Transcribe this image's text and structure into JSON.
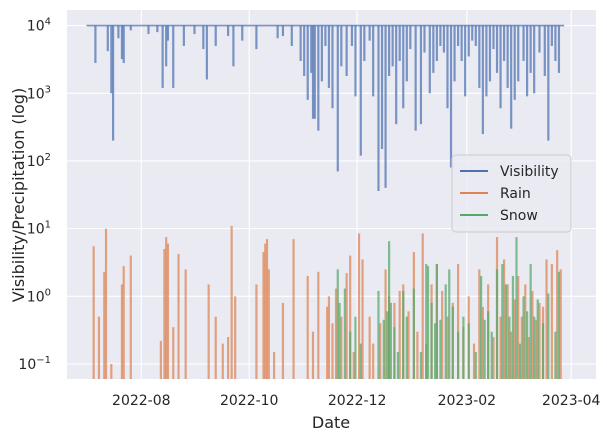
{
  "chart_data": {
    "type": "line",
    "title": "",
    "xlabel": "Date",
    "ylabel": "Visibility/Precipitation (log)",
    "yscale": "log",
    "ylim": [
      0.06,
      17000
    ],
    "xlim": [
      "2022-06-20",
      "2023-04-15"
    ],
    "grid": true,
    "legend_position": "center-right",
    "x_ticks": [
      {
        "date": "2022-08-01",
        "label": "2022-08"
      },
      {
        "date": "2022-10-01",
        "label": "2022-10"
      },
      {
        "date": "2022-12-01",
        "label": "2022-12"
      },
      {
        "date": "2023-02-01",
        "label": "2023-02"
      },
      {
        "date": "2023-04-01",
        "label": "2023-04"
      }
    ],
    "y_ticks": [
      {
        "value": 0.1,
        "base": "10",
        "exp": "−1"
      },
      {
        "value": 1,
        "base": "10",
        "exp": "0"
      },
      {
        "value": 10,
        "base": "10",
        "exp": "1"
      },
      {
        "value": 100,
        "base": "10",
        "exp": "2"
      },
      {
        "value": 1000,
        "base": "10",
        "exp": "3"
      },
      {
        "value": 10000,
        "base": "10",
        "exp": "4"
      }
    ],
    "series": [
      {
        "name": "Visibility",
        "color": "#4c72b0",
        "baseline": 10000,
        "span": [
          "2022-07-01",
          "2023-03-28"
        ],
        "dips": [
          [
            "2022-07-06",
            2800
          ],
          [
            "2022-07-13",
            4200
          ],
          [
            "2022-07-15",
            1000
          ],
          [
            "2022-07-16",
            200
          ],
          [
            "2022-07-19",
            6500
          ],
          [
            "2022-07-21",
            3200
          ],
          [
            "2022-07-22",
            2800
          ],
          [
            "2022-07-26",
            8500
          ],
          [
            "2022-08-05",
            7500
          ],
          [
            "2022-08-10",
            8000
          ],
          [
            "2022-08-13",
            1200
          ],
          [
            "2022-08-15",
            2500
          ],
          [
            "2022-08-16",
            6000
          ],
          [
            "2022-08-19",
            1200
          ],
          [
            "2022-08-25",
            5000
          ],
          [
            "2022-08-31",
            7500
          ],
          [
            "2022-09-05",
            4500
          ],
          [
            "2022-09-07",
            1600
          ],
          [
            "2022-09-12",
            5000
          ],
          [
            "2022-09-19",
            7000
          ],
          [
            "2022-09-22",
            2500
          ],
          [
            "2022-09-27",
            6000
          ],
          [
            "2022-10-05",
            4500
          ],
          [
            "2022-10-17",
            6500
          ],
          [
            "2022-10-20",
            7000
          ],
          [
            "2022-10-25",
            5000
          ],
          [
            "2022-10-30",
            3000
          ],
          [
            "2022-11-01",
            1800
          ],
          [
            "2022-11-03",
            800
          ],
          [
            "2022-11-05",
            2000
          ],
          [
            "2022-11-06",
            420
          ],
          [
            "2022-11-07",
            420
          ],
          [
            "2022-11-09",
            280
          ],
          [
            "2022-11-11",
            1500
          ],
          [
            "2022-11-13",
            5000
          ],
          [
            "2022-11-15",
            1200
          ],
          [
            "2022-11-17",
            600
          ],
          [
            "2022-11-20",
            70
          ],
          [
            "2022-11-22",
            2500
          ],
          [
            "2022-11-25",
            1800
          ],
          [
            "2022-11-28",
            5000
          ],
          [
            "2022-11-30",
            900
          ],
          [
            "2022-12-03",
            120
          ],
          [
            "2022-12-05",
            3000
          ],
          [
            "2022-12-08",
            6000
          ],
          [
            "2022-12-10",
            900
          ],
          [
            "2022-12-13",
            36
          ],
          [
            "2022-12-15",
            150
          ],
          [
            "2022-12-17",
            40
          ],
          [
            "2022-12-19",
            1800
          ],
          [
            "2022-12-21",
            2500
          ],
          [
            "2022-12-23",
            350
          ],
          [
            "2022-12-25",
            3000
          ],
          [
            "2022-12-27",
            600
          ],
          [
            "2022-12-29",
            1500
          ],
          [
            "2022-12-31",
            4500
          ],
          [
            "2023-01-03",
            280
          ],
          [
            "2023-01-06",
            350
          ],
          [
            "2023-01-08",
            4000
          ],
          [
            "2023-01-11",
            1000
          ],
          [
            "2023-01-13",
            2000
          ],
          [
            "2023-01-15",
            3000
          ],
          [
            "2023-01-17",
            5000
          ],
          [
            "2023-01-19",
            4000
          ],
          [
            "2023-01-21",
            600
          ],
          [
            "2023-01-23",
            80
          ],
          [
            "2023-01-25",
            1500
          ],
          [
            "2023-01-27",
            5000
          ],
          [
            "2023-01-29",
            3000
          ],
          [
            "2023-01-31",
            900
          ],
          [
            "2023-02-02",
            3500
          ],
          [
            "2023-02-04",
            6000
          ],
          [
            "2023-02-06",
            5000
          ],
          [
            "2023-02-08",
            1200
          ],
          [
            "2023-02-10",
            250
          ],
          [
            "2023-02-12",
            900
          ],
          [
            "2023-02-14",
            1500
          ],
          [
            "2023-02-16",
            4500
          ],
          [
            "2023-02-18",
            2000
          ],
          [
            "2023-02-20",
            600
          ],
          [
            "2023-02-22",
            3000
          ],
          [
            "2023-02-24",
            1200
          ],
          [
            "2023-02-26",
            300
          ],
          [
            "2023-02-28",
            800
          ],
          [
            "2023-03-02",
            1500
          ],
          [
            "2023-03-05",
            3000
          ],
          [
            "2023-03-07",
            900
          ],
          [
            "2023-03-09",
            2000
          ],
          [
            "2023-03-11",
            1000
          ],
          [
            "2023-03-14",
            4000
          ],
          [
            "2023-03-17",
            1800
          ],
          [
            "2023-03-19",
            200
          ],
          [
            "2023-03-21",
            5000
          ],
          [
            "2023-03-23",
            3000
          ],
          [
            "2023-03-25",
            2000
          ]
        ]
      },
      {
        "name": "Rain",
        "color": "#dd8452",
        "events": [
          [
            "2022-07-05",
            5.5
          ],
          [
            "2022-07-08",
            0.5
          ],
          [
            "2022-07-11",
            2.3
          ],
          [
            "2022-07-12",
            10
          ],
          [
            "2022-07-15",
            0.1
          ],
          [
            "2022-07-21",
            1.5
          ],
          [
            "2022-07-22",
            2.8
          ],
          [
            "2022-07-26",
            4
          ],
          [
            "2022-08-12",
            0.22
          ],
          [
            "2022-08-14",
            5.0
          ],
          [
            "2022-08-15",
            7.5
          ],
          [
            "2022-08-16",
            6
          ],
          [
            "2022-08-19",
            0.35
          ],
          [
            "2022-08-22",
            4.2
          ],
          [
            "2022-08-26",
            2.5
          ],
          [
            "2022-09-08",
            1.5
          ],
          [
            "2022-09-12",
            0.5
          ],
          [
            "2022-09-16",
            0.2
          ],
          [
            "2022-09-19",
            0.25
          ],
          [
            "2022-09-21",
            11
          ],
          [
            "2022-09-23",
            1.0
          ],
          [
            "2022-10-05",
            1.5
          ],
          [
            "2022-10-09",
            4.5
          ],
          [
            "2022-10-10",
            6
          ],
          [
            "2022-10-11",
            7
          ],
          [
            "2022-10-12",
            2.5
          ],
          [
            "2022-10-15",
            0.15
          ],
          [
            "2022-10-20",
            0.8
          ],
          [
            "2022-10-26",
            7
          ],
          [
            "2022-11-03",
            2.0
          ],
          [
            "2022-11-06",
            0.3
          ],
          [
            "2022-11-09",
            2.3
          ],
          [
            "2022-11-14",
            0.7
          ],
          [
            "2022-11-15",
            1.0
          ],
          [
            "2022-11-17",
            0.4
          ],
          [
            "2022-11-19",
            1.3
          ],
          [
            "2022-11-22",
            0.5
          ],
          [
            "2022-11-25",
            2.2
          ],
          [
            "2022-11-27",
            4.0
          ],
          [
            "2022-11-29",
            0.15
          ],
          [
            "2022-12-02",
            8.5
          ],
          [
            "2022-12-04",
            3.5
          ],
          [
            "2022-12-08",
            0.5
          ],
          [
            "2022-12-10",
            0.2
          ],
          [
            "2022-12-14",
            0.4
          ],
          [
            "2022-12-17",
            2.5
          ],
          [
            "2022-12-19",
            1.0
          ],
          [
            "2022-12-22",
            0.8
          ],
          [
            "2022-12-25",
            1.2
          ],
          [
            "2022-12-27",
            1.5
          ],
          [
            "2022-12-30",
            0.6
          ],
          [
            "2023-01-02",
            4.5
          ],
          [
            "2023-01-04",
            0.3
          ],
          [
            "2023-01-07",
            8.5
          ],
          [
            "2023-01-09",
            0.2
          ],
          [
            "2023-01-12",
            1.5
          ],
          [
            "2023-01-15",
            3.0
          ],
          [
            "2023-01-18",
            1.2
          ],
          [
            "2023-01-21",
            0.5
          ],
          [
            "2023-01-24",
            0.8
          ],
          [
            "2023-01-27",
            3.0
          ],
          [
            "2023-01-30",
            0.35
          ],
          [
            "2023-02-02",
            1.0
          ],
          [
            "2023-02-05",
            0.2
          ],
          [
            "2023-02-08",
            2.5
          ],
          [
            "2023-02-10",
            0.7
          ],
          [
            "2023-02-13",
            1.5
          ],
          [
            "2023-02-16",
            0.25
          ],
          [
            "2023-02-18",
            7.5
          ],
          [
            "2023-02-20",
            0.5
          ],
          [
            "2023-02-22",
            3.5
          ],
          [
            "2023-02-24",
            1.5
          ],
          [
            "2023-02-26",
            0.3
          ],
          [
            "2023-02-28",
            0.9
          ],
          [
            "2023-03-02",
            2.0
          ],
          [
            "2023-03-04",
            0.5
          ],
          [
            "2023-03-06",
            1.5
          ],
          [
            "2023-03-08",
            0.25
          ],
          [
            "2023-03-10",
            1.2
          ],
          [
            "2023-03-12",
            0.45
          ],
          [
            "2023-03-14",
            0.8
          ],
          [
            "2023-03-16",
            0.7
          ],
          [
            "2023-03-18",
            3.5
          ],
          [
            "2023-03-21",
            3.0
          ],
          [
            "2023-03-24",
            4.8
          ],
          [
            "2023-03-26",
            2.5
          ]
        ]
      },
      {
        "name": "Snow",
        "color": "#55a868",
        "events": [
          [
            "2022-11-20",
            2.5
          ],
          [
            "2022-11-21",
            0.8
          ],
          [
            "2022-11-24",
            1.3
          ],
          [
            "2022-11-27",
            0.3
          ],
          [
            "2022-11-30",
            0.5
          ],
          [
            "2022-12-03",
            0.2
          ],
          [
            "2022-12-13",
            1.2
          ],
          [
            "2022-12-16",
            0.45
          ],
          [
            "2022-12-18",
            0.6
          ],
          [
            "2022-12-19",
            6.5
          ],
          [
            "2022-12-20",
            0.8
          ],
          [
            "2022-12-22",
            0.35
          ],
          [
            "2022-12-24",
            0.15
          ],
          [
            "2022-12-27",
            1.2
          ],
          [
            "2022-12-29",
            0.5
          ],
          [
            "2023-01-02",
            1.3
          ],
          [
            "2023-01-06",
            0.15
          ],
          [
            "2023-01-09",
            3.0
          ],
          [
            "2023-01-10",
            2.8
          ],
          [
            "2023-01-12",
            0.8
          ],
          [
            "2023-01-14",
            0.4
          ],
          [
            "2023-01-15",
            3.0
          ],
          [
            "2023-01-17",
            0.45
          ],
          [
            "2023-01-20",
            1.5
          ],
          [
            "2023-01-22",
            2.5
          ],
          [
            "2023-01-24",
            0.7
          ],
          [
            "2023-01-27",
            0.3
          ],
          [
            "2023-01-30",
            0.5
          ],
          [
            "2023-02-02",
            0.4
          ],
          [
            "2023-02-06",
            0.15
          ],
          [
            "2023-02-09",
            2.0
          ],
          [
            "2023-02-11",
            0.45
          ],
          [
            "2023-02-13",
            0.6
          ],
          [
            "2023-02-15",
            0.3
          ],
          [
            "2023-02-18",
            2.5
          ],
          [
            "2023-02-21",
            3.0
          ],
          [
            "2023-02-23",
            1.5
          ],
          [
            "2023-02-25",
            0.5
          ],
          [
            "2023-02-27",
            2.0
          ],
          [
            "2023-03-01",
            7.5
          ],
          [
            "2023-03-03",
            0.2
          ],
          [
            "2023-03-05",
            1.0
          ],
          [
            "2023-03-07",
            0.6
          ],
          [
            "2023-03-09",
            3.0
          ],
          [
            "2023-03-11",
            0.5
          ],
          [
            "2023-03-13",
            0.9
          ],
          [
            "2023-03-16",
            0.4
          ],
          [
            "2023-03-19",
            1.1
          ],
          [
            "2023-03-23",
            0.3
          ],
          [
            "2023-03-25",
            2.3
          ]
        ]
      }
    ]
  }
}
